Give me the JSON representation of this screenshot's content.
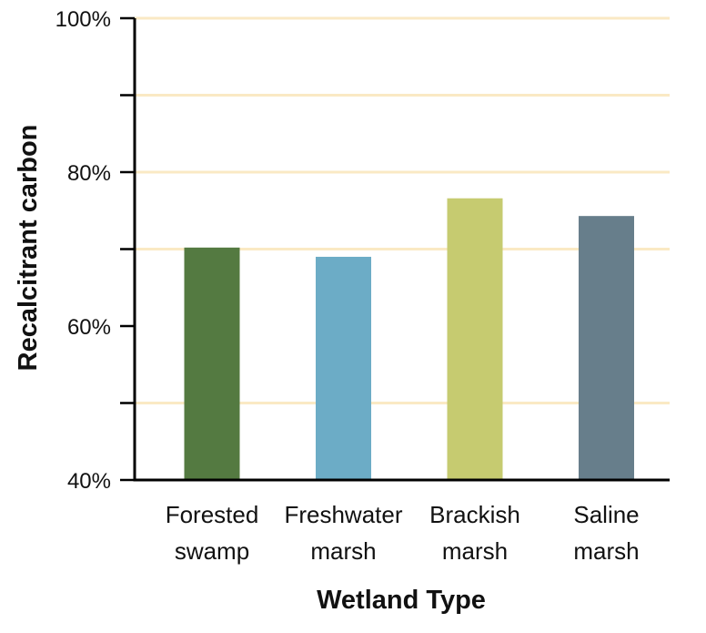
{
  "chart_data": {
    "type": "bar",
    "categories": [
      [
        "Forested",
        "swamp"
      ],
      [
        "Freshwater",
        "marsh"
      ],
      [
        "Brackish",
        "marsh"
      ],
      [
        "Saline",
        "marsh"
      ]
    ],
    "values": [
      70.2,
      69.0,
      76.6,
      74.3
    ],
    "colors": [
      "#547a41",
      "#6cacc6",
      "#c6cb70",
      "#677e8b"
    ],
    "xlabel": "Wetland Type",
    "ylabel": "Recalcitrant carbon",
    "ylim": [
      40,
      100
    ],
    "yticks": [
      40,
      60,
      80,
      100
    ],
    "ytick_labels": [
      "40%",
      "60%",
      "80%",
      "100%"
    ],
    "gridlines": [
      50,
      70,
      80,
      90,
      100
    ],
    "gridline_color": "#fae9c4",
    "grid": true
  }
}
